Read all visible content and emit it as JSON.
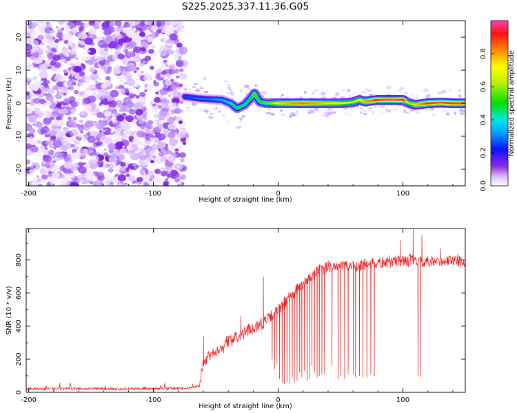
{
  "title": "S225.2025.337.11.36.G05",
  "chart_data": [
    {
      "type": "heatmap",
      "xlabel": "Height of straight line (km)",
      "ylabel": "Frequency (Hz)",
      "xlim": [
        -202,
        150
      ],
      "ylim": [
        -25,
        25
      ],
      "xticks": [
        -200,
        -100,
        0,
        100
      ],
      "yticks": [
        -20,
        -10,
        0,
        10,
        20
      ],
      "noise_region": {
        "x": [
          -202,
          -75
        ],
        "y": [
          -25,
          25
        ],
        "amplitude": "low, scattered"
      },
      "signal_track": {
        "x": [
          -75,
          -65,
          -55,
          -45,
          -38,
          -33,
          -27,
          -22,
          -19,
          -15,
          -10,
          -5,
          0,
          10,
          20,
          30,
          40,
          50,
          60,
          65,
          70,
          75,
          80,
          90,
          100,
          105,
          110,
          120,
          130,
          140,
          150
        ],
        "y": [
          2,
          1.5,
          1.2,
          1,
          0,
          -1.5,
          -0.5,
          1.5,
          3,
          0.5,
          0,
          0,
          0,
          0,
          0,
          0,
          0,
          0,
          0.3,
          1,
          0.5,
          0.8,
          1,
          1,
          1,
          0,
          -0.5,
          0,
          0.2,
          0,
          0
        ],
        "amplitude": [
          0.25,
          0.3,
          0.3,
          0.35,
          0.4,
          0.5,
          0.45,
          0.5,
          0.55,
          0.5,
          0.55,
          0.6,
          0.75,
          0.8,
          0.85,
          0.8,
          0.75,
          0.7,
          0.65,
          0.7,
          0.8,
          0.85,
          0.95,
          1.0,
          0.95,
          0.6,
          0.75,
          0.9,
          0.85,
          0.9,
          0.85
        ]
      },
      "colorbar": {
        "label": "Normalized spectral amplitude",
        "range": [
          0,
          1
        ],
        "ticks": [
          "0.0",
          "0.2",
          "0.4",
          "0.6",
          "0.8"
        ]
      }
    },
    {
      "type": "line",
      "xlabel": "Height of straight line (km)",
      "ylabel": "SNR (10 * v/v)",
      "xlim": [
        -202,
        150
      ],
      "ylim": [
        0,
        990
      ],
      "xticks": [
        -200,
        -100,
        0,
        100
      ],
      "yticks": [
        0,
        200,
        400,
        600,
        800
      ],
      "color": "#ee2222",
      "envelope": {
        "x": [
          -202,
          -150,
          -100,
          -70,
          -63,
          -60,
          -55,
          -50,
          -45,
          -40,
          -35,
          -30,
          -25,
          -20,
          -15,
          -10,
          -5,
          0,
          5,
          10,
          15,
          20,
          25,
          30,
          35,
          40,
          50,
          60,
          70,
          80,
          90,
          100,
          110,
          120,
          130,
          140,
          150
        ],
        "y": [
          20,
          22,
          22,
          25,
          40,
          180,
          220,
          250,
          270,
          310,
          330,
          340,
          370,
          390,
          410,
          430,
          460,
          500,
          540,
          580,
          620,
          650,
          690,
          720,
          740,
          760,
          770,
          760,
          780,
          780,
          790,
          800,
          790,
          780,
          790,
          800,
          790
        ]
      },
      "dropouts": [
        {
          "x": -5,
          "y": 200
        },
        {
          "x": -3,
          "y": 140
        },
        {
          "x": -1,
          "y": 170
        },
        {
          "x": 1,
          "y": 80
        },
        {
          "x": 3,
          "y": 60
        },
        {
          "x": 5,
          "y": 50
        },
        {
          "x": 7,
          "y": 60
        },
        {
          "x": 9,
          "y": 50
        },
        {
          "x": 11,
          "y": 90
        },
        {
          "x": 13,
          "y": 60
        },
        {
          "x": 15,
          "y": 70
        },
        {
          "x": 17,
          "y": 120
        },
        {
          "x": 19,
          "y": 90
        },
        {
          "x": 21,
          "y": 130
        },
        {
          "x": 23,
          "y": 70
        },
        {
          "x": 25,
          "y": 80
        },
        {
          "x": 27,
          "y": 160
        },
        {
          "x": 29,
          "y": 120
        },
        {
          "x": 31,
          "y": 90
        },
        {
          "x": 33,
          "y": 100
        },
        {
          "x": 35,
          "y": 110
        },
        {
          "x": 37,
          "y": 110
        },
        {
          "x": 43,
          "y": 160
        },
        {
          "x": 48,
          "y": 80
        },
        {
          "x": 50,
          "y": 100
        },
        {
          "x": 53,
          "y": 80
        },
        {
          "x": 56,
          "y": 110
        },
        {
          "x": 60,
          "y": 110
        },
        {
          "x": 62,
          "y": 90
        },
        {
          "x": 65,
          "y": 100
        },
        {
          "x": 68,
          "y": 90
        },
        {
          "x": 71,
          "y": 90
        },
        {
          "x": 74,
          "y": 110
        },
        {
          "x": 77,
          "y": 100
        },
        {
          "x": 112,
          "y": 100
        },
        {
          "x": 114,
          "y": 90
        }
      ],
      "spikes": [
        {
          "x": -60,
          "y": 340
        },
        {
          "x": -37,
          "y": 350
        },
        {
          "x": -30,
          "y": 460
        },
        {
          "x": -12,
          "y": 700
        },
        {
          "x": 98,
          "y": 920
        },
        {
          "x": 108,
          "y": 985
        },
        {
          "x": 115,
          "y": 950
        },
        {
          "x": 130,
          "y": 870
        }
      ],
      "noise_amplitude": {
        "low_region": 8,
        "high_region": 45
      }
    }
  ]
}
